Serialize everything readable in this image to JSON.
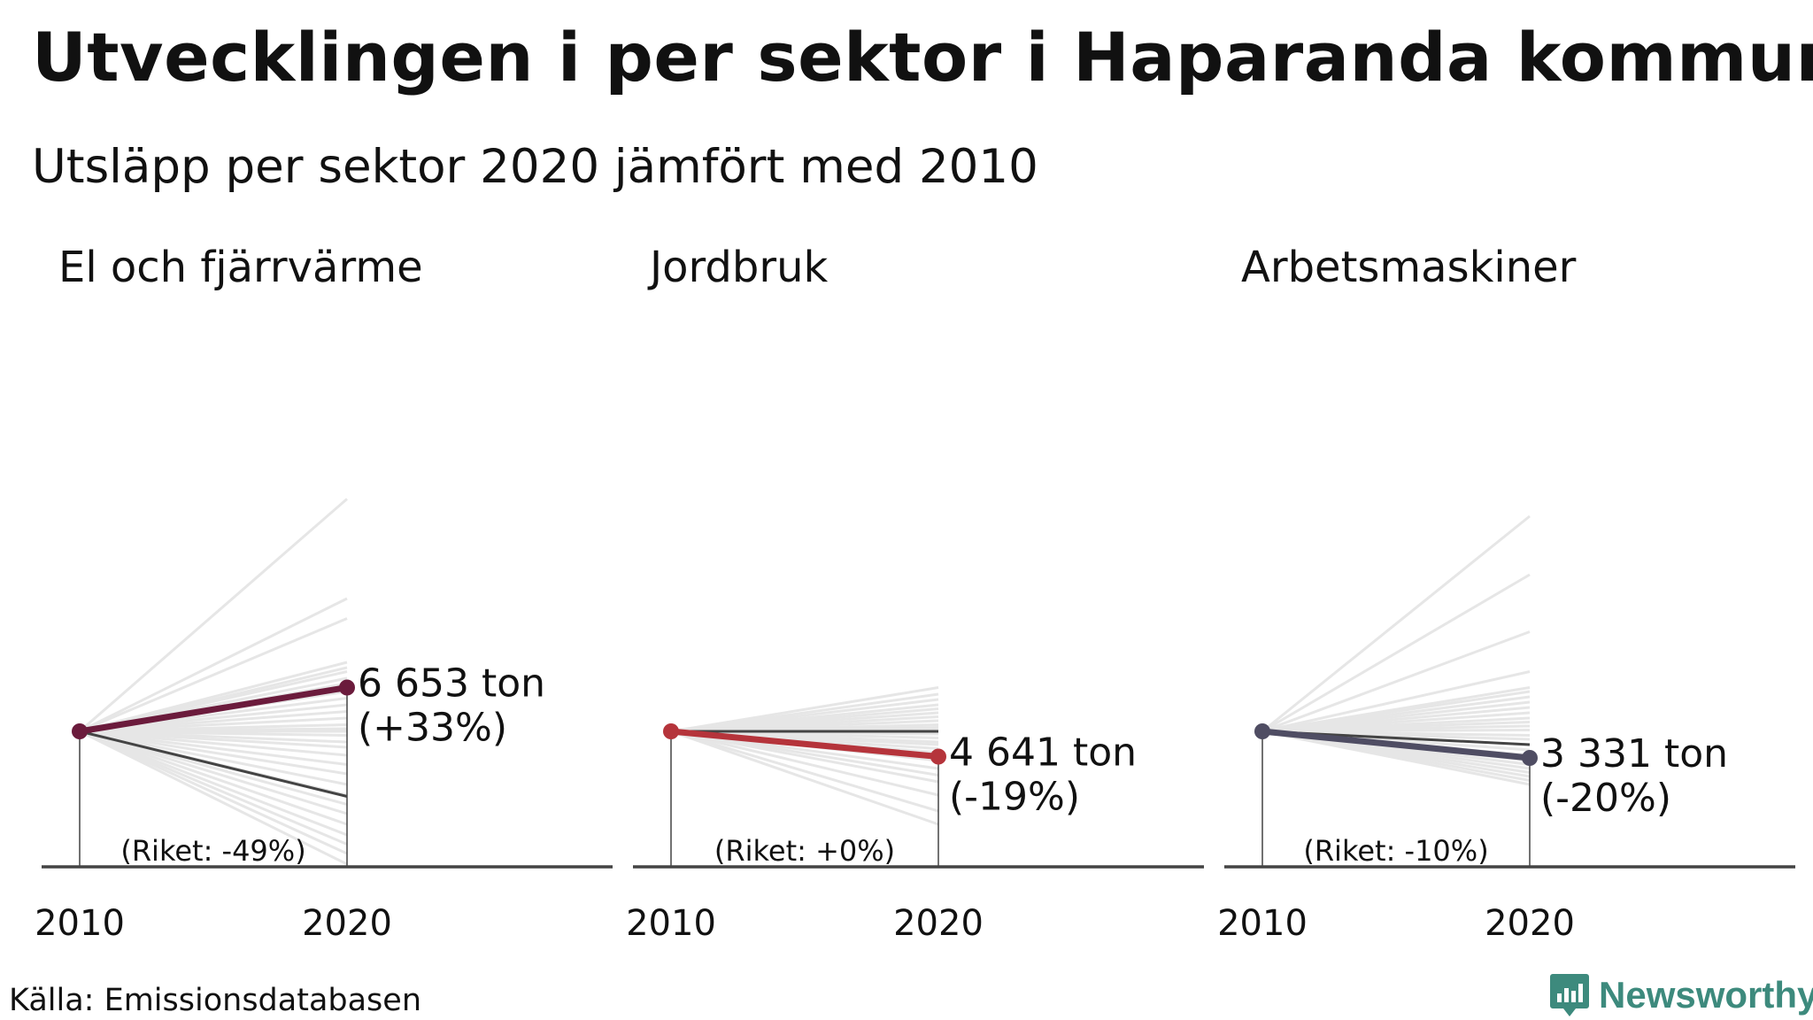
{
  "title": "Utvecklingen i per sektor i Haparanda kommun",
  "subtitle": "Utsläpp per sektor 2020 jämfört med 2010",
  "source": "Källa: Emissionsdatabasen",
  "logo_text": "Newsworthy",
  "colors": {
    "context_lines": "#e6e6e6",
    "national": "#444444",
    "axis": "#444444"
  },
  "chart_data": [
    {
      "type": "line",
      "title": "El och fjärrvärme",
      "x": [
        "2010",
        "2020"
      ],
      "change_pct": 33,
      "value_label": "6 653 ton",
      "change_label": "(+33%)",
      "national_change_pct": -49,
      "national_label": "(Riket: -49%)",
      "color": "#6b1b3c",
      "context_changes_pct": [
        175,
        100,
        85,
        52,
        48,
        45,
        40,
        36,
        30,
        25,
        20,
        15,
        10,
        5,
        2,
        0,
        -3,
        -8,
        -12,
        -18,
        -25,
        -32,
        -40,
        -48,
        -55,
        -62,
        -70,
        -78,
        -85,
        -92,
        -100
      ]
    },
    {
      "type": "line",
      "title": "Jordbruk",
      "x": [
        "2010",
        "2020"
      ],
      "change_pct": -19,
      "value_label": "4 641 ton",
      "change_label": "(-19%)",
      "national_change_pct": 0,
      "national_label": "(Riket: +0%)",
      "color": "#b5343b",
      "context_changes_pct": [
        33,
        28,
        24,
        20,
        17,
        14,
        11,
        8,
        5,
        3,
        1,
        -2,
        -5,
        -8,
        -10,
        -13,
        -16,
        -22,
        -28,
        -33,
        -38,
        -48,
        -60,
        -70
      ]
    },
    {
      "type": "line",
      "title": "Arbetsmaskiner",
      "x": [
        "2010",
        "2020"
      ],
      "change_pct": -20,
      "value_label": "3 331 ton",
      "change_label": "(-20%)",
      "national_change_pct": -10,
      "national_label": "(Riket: -10%)",
      "color": "#4f4d63",
      "context_changes_pct": [
        162,
        118,
        75,
        45,
        33,
        30,
        26,
        22,
        18,
        14,
        10,
        7,
        4,
        1,
        -3,
        -6,
        -10,
        -14,
        -18,
        -22,
        -25,
        -28,
        -31,
        -34,
        -37,
        -40
      ]
    }
  ]
}
